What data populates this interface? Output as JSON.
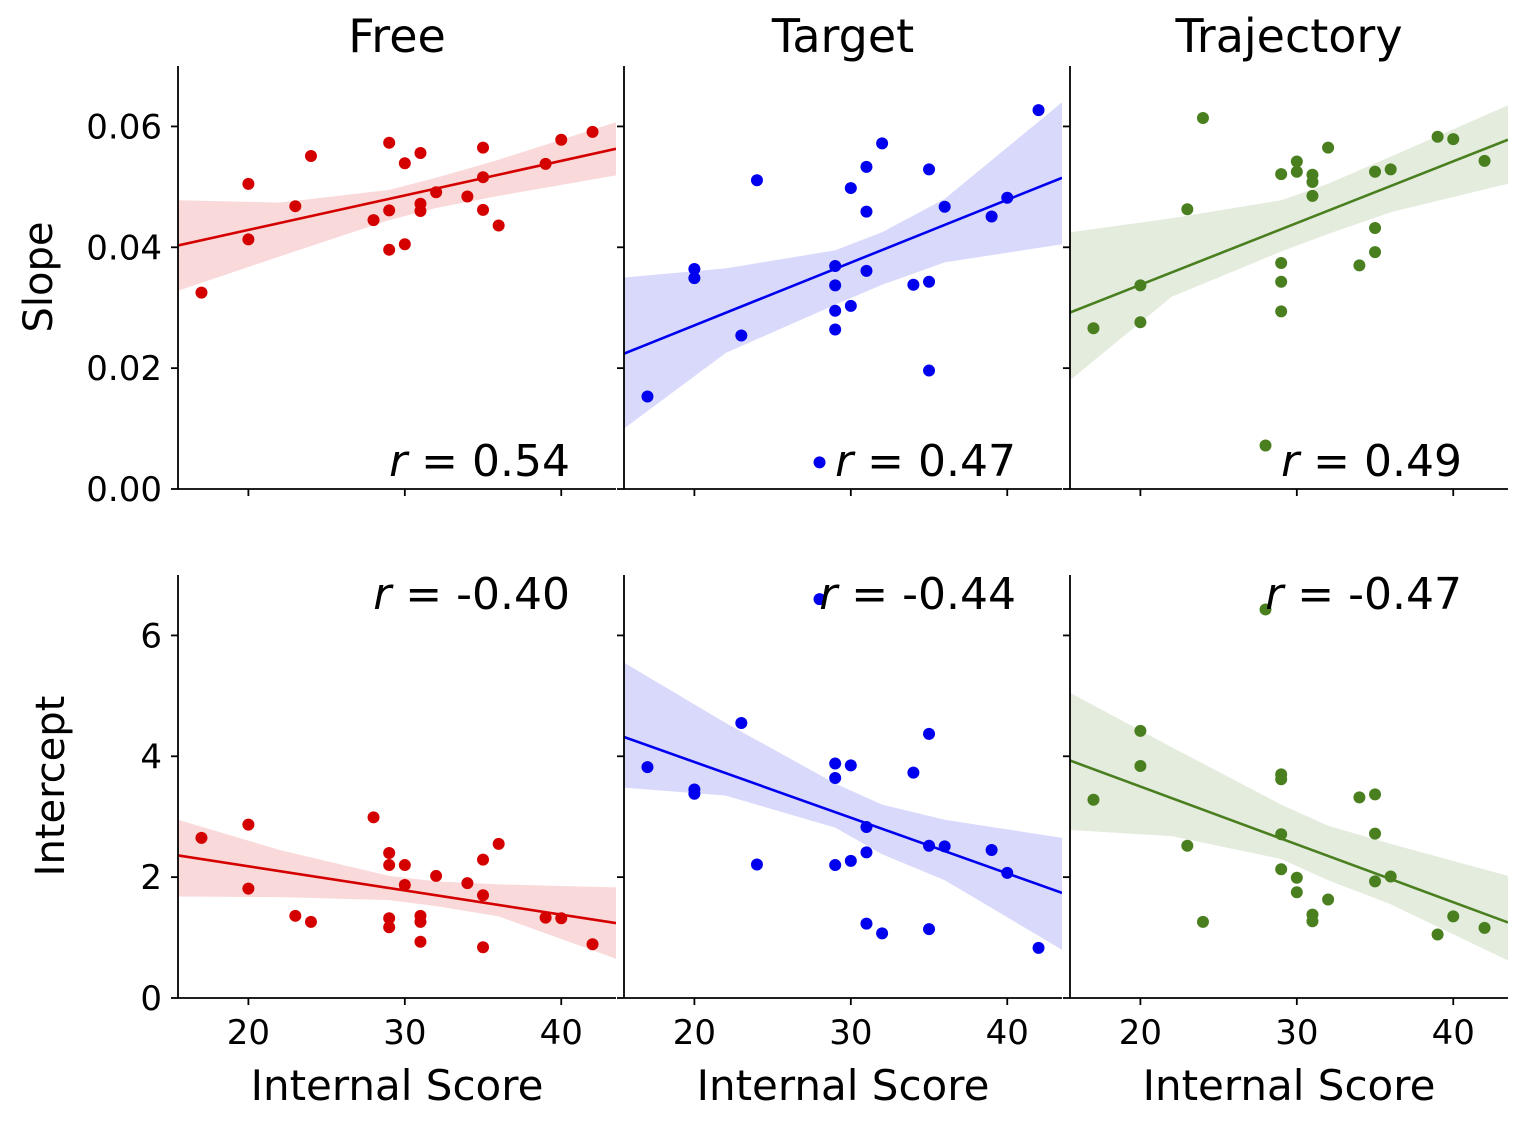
{
  "figure": {
    "column_titles": [
      "Free",
      "Target",
      "Trajectory"
    ],
    "row_labels": [
      "Slope",
      "Intercept"
    ],
    "x_label": "Internal Score"
  },
  "chart_data": [
    {
      "type": "scatter",
      "panel": "Free / Slope",
      "color": "#d40000",
      "xlim": [
        15.5,
        43.5
      ],
      "ylim": [
        0,
        0.07
      ],
      "xticks": [
        20,
        30,
        40
      ],
      "yticks": [
        0.0,
        0.02,
        0.04,
        0.06
      ],
      "ytick_labels": [
        "0.00",
        "0.02",
        "0.04",
        "0.06"
      ],
      "annotation": "r = 0.54",
      "points": [
        [
          17,
          0.0325
        ],
        [
          20,
          0.0505
        ],
        [
          20,
          0.0413
        ],
        [
          23,
          0.0468
        ],
        [
          24,
          0.0551
        ],
        [
          28,
          0.0445
        ],
        [
          29,
          0.0573
        ],
        [
          29,
          0.0461
        ],
        [
          29,
          0.0396
        ],
        [
          30,
          0.0539
        ],
        [
          30,
          0.0405
        ],
        [
          31,
          0.0556
        ],
        [
          31,
          0.0472
        ],
        [
          31,
          0.046
        ],
        [
          32,
          0.0491
        ],
        [
          34,
          0.0484
        ],
        [
          35,
          0.0565
        ],
        [
          35,
          0.0516
        ],
        [
          35,
          0.0462
        ],
        [
          36,
          0.0436
        ],
        [
          39,
          0.0538
        ],
        [
          40,
          0.0578
        ],
        [
          42,
          0.0591
        ]
      ],
      "fit": {
        "x": [
          15.5,
          43.5
        ],
        "y": [
          0.0403,
          0.0563
        ]
      },
      "band": {
        "x": [
          15.5,
          22,
          29,
          32,
          36,
          43.5
        ],
        "upper": [
          0.0478,
          0.0474,
          0.0495,
          0.0515,
          0.0545,
          0.0607
        ],
        "lower": [
          0.0328,
          0.0385,
          0.0445,
          0.0465,
          0.0485,
          0.0519
        ]
      }
    },
    {
      "type": "scatter",
      "panel": "Target / Slope",
      "color": "#0000ee",
      "xlim": [
        15.5,
        43.5
      ],
      "ylim": [
        0,
        0.07
      ],
      "xticks": [
        20,
        30,
        40
      ],
      "yticks": [
        0.0,
        0.02,
        0.04,
        0.06
      ],
      "annotation": "r = 0.47",
      "points": [
        [
          17,
          0.0153
        ],
        [
          20,
          0.0364
        ],
        [
          20,
          0.0349
        ],
        [
          23,
          0.0254
        ],
        [
          24,
          0.0511
        ],
        [
          28,
          0.0044
        ],
        [
          29,
          0.0369
        ],
        [
          29,
          0.0337
        ],
        [
          29,
          0.0295
        ],
        [
          29,
          0.0264
        ],
        [
          30,
          0.0498
        ],
        [
          30,
          0.0303
        ],
        [
          31,
          0.0533
        ],
        [
          31,
          0.0459
        ],
        [
          31,
          0.0361
        ],
        [
          32,
          0.0572
        ],
        [
          34,
          0.0338
        ],
        [
          35,
          0.0529
        ],
        [
          35,
          0.0343
        ],
        [
          35,
          0.0196
        ],
        [
          36,
          0.0467
        ],
        [
          39,
          0.0451
        ],
        [
          40,
          0.0482
        ],
        [
          42,
          0.0627
        ]
      ],
      "fit": {
        "x": [
          15.5,
          43.5
        ],
        "y": [
          0.0224,
          0.0515
        ]
      },
      "band": {
        "x": [
          15.5,
          22,
          29,
          32,
          36,
          43.5
        ],
        "upper": [
          0.035,
          0.0365,
          0.0395,
          0.0425,
          0.048,
          0.064
        ],
        "lower": [
          0.01,
          0.0225,
          0.0305,
          0.0338,
          0.0375,
          0.0405
        ]
      }
    },
    {
      "type": "scatter",
      "panel": "Trajectory / Slope",
      "color": "#4a7f1f",
      "xlim": [
        15.5,
        43.5
      ],
      "ylim": [
        0,
        0.07
      ],
      "xticks": [
        20,
        30,
        40
      ],
      "yticks": [
        0.0,
        0.02,
        0.04,
        0.06
      ],
      "annotation": "r = 0.49",
      "points": [
        [
          17,
          0.0266
        ],
        [
          20,
          0.0337
        ],
        [
          20,
          0.0276
        ],
        [
          23,
          0.0463
        ],
        [
          24,
          0.0614
        ],
        [
          28,
          0.0072
        ],
        [
          29,
          0.0521
        ],
        [
          29,
          0.0374
        ],
        [
          29,
          0.0343
        ],
        [
          29,
          0.0294
        ],
        [
          30,
          0.0542
        ],
        [
          30,
          0.0525
        ],
        [
          31,
          0.052
        ],
        [
          31,
          0.0508
        ],
        [
          31,
          0.0485
        ],
        [
          32,
          0.0565
        ],
        [
          34,
          0.037
        ],
        [
          35,
          0.0525
        ],
        [
          35,
          0.0432
        ],
        [
          35,
          0.0392
        ],
        [
          36,
          0.0529
        ],
        [
          39,
          0.0583
        ],
        [
          40,
          0.0579
        ],
        [
          42,
          0.0543
        ]
      ],
      "fit": {
        "x": [
          15.5,
          43.5
        ],
        "y": [
          0.0292,
          0.0578
        ]
      },
      "band": {
        "x": [
          15.5,
          22,
          29,
          32,
          36,
          43.5
        ],
        "upper": [
          0.0425,
          0.0448,
          0.0478,
          0.0505,
          0.055,
          0.0635
        ],
        "lower": [
          0.018,
          0.0318,
          0.0393,
          0.0422,
          0.0458,
          0.0505
        ]
      }
    },
    {
      "type": "scatter",
      "panel": "Free / Intercept",
      "color": "#d40000",
      "xlim": [
        15.5,
        43.5
      ],
      "ylim": [
        0,
        7
      ],
      "xticks": [
        20,
        30,
        40
      ],
      "yticks": [
        0,
        2,
        4,
        6
      ],
      "xtick_labels": [
        "20",
        "30",
        "40"
      ],
      "ytick_labels": [
        "0",
        "2",
        "4",
        "6"
      ],
      "annotation": "r = -0.40",
      "points": [
        [
          17,
          2.65
        ],
        [
          20,
          2.87
        ],
        [
          20,
          1.81
        ],
        [
          23,
          1.36
        ],
        [
          24,
          1.26
        ],
        [
          28,
          2.99
        ],
        [
          29,
          2.4
        ],
        [
          29,
          2.2
        ],
        [
          29,
          1.32
        ],
        [
          29,
          1.17
        ],
        [
          30,
          2.2
        ],
        [
          30,
          1.87
        ],
        [
          31,
          1.36
        ],
        [
          31,
          1.26
        ],
        [
          31,
          0.93
        ],
        [
          32,
          2.02
        ],
        [
          34,
          1.9
        ],
        [
          35,
          2.29
        ],
        [
          35,
          1.7
        ],
        [
          35,
          0.84
        ],
        [
          36,
          2.55
        ],
        [
          39,
          1.33
        ],
        [
          40,
          1.32
        ],
        [
          42,
          0.89
        ]
      ],
      "fit": {
        "x": [
          15.5,
          43.5
        ],
        "y": [
          2.36,
          1.24
        ]
      },
      "band": {
        "x": [
          15.5,
          22,
          29,
          32,
          36,
          43.5
        ],
        "upper": [
          2.95,
          2.45,
          2.02,
          1.93,
          1.88,
          1.83
        ],
        "lower": [
          1.68,
          1.67,
          1.62,
          1.52,
          1.35,
          0.65
        ]
      }
    },
    {
      "type": "scatter",
      "panel": "Target / Intercept",
      "color": "#0000ee",
      "xlim": [
        15.5,
        43.5
      ],
      "ylim": [
        0,
        7
      ],
      "xticks": [
        20,
        30,
        40
      ],
      "yticks": [
        0,
        2,
        4,
        6
      ],
      "xtick_labels": [
        "20",
        "30",
        "40"
      ],
      "annotation": "r = -0.44",
      "points": [
        [
          17,
          3.82
        ],
        [
          20,
          3.45
        ],
        [
          20,
          3.38
        ],
        [
          23,
          4.55
        ],
        [
          24,
          2.21
        ],
        [
          28,
          6.6
        ],
        [
          29,
          3.88
        ],
        [
          29,
          3.64
        ],
        [
          29,
          2.2
        ],
        [
          30,
          3.85
        ],
        [
          30,
          2.27
        ],
        [
          31,
          2.83
        ],
        [
          31,
          2.41
        ],
        [
          31,
          1.23
        ],
        [
          32,
          1.07
        ],
        [
          34,
          3.73
        ],
        [
          35,
          4.37
        ],
        [
          35,
          2.52
        ],
        [
          35,
          1.14
        ],
        [
          36,
          2.51
        ],
        [
          39,
          2.45
        ],
        [
          40,
          2.07
        ],
        [
          42,
          0.83
        ]
      ],
      "fit": {
        "x": [
          15.5,
          43.5
        ],
        "y": [
          4.32,
          1.74
        ]
      },
      "band": {
        "x": [
          15.5,
          22,
          29,
          32,
          36,
          43.5
        ],
        "upper": [
          5.55,
          4.55,
          3.55,
          3.2,
          2.95,
          2.65
        ],
        "lower": [
          3.48,
          3.35,
          2.82,
          2.38,
          1.95,
          0.8
        ]
      }
    },
    {
      "type": "scatter",
      "panel": "Trajectory / Intercept",
      "color": "#4a7f1f",
      "xlim": [
        15.5,
        43.5
      ],
      "ylim": [
        0,
        7
      ],
      "xticks": [
        20,
        30,
        40
      ],
      "yticks": [
        0,
        2,
        4,
        6
      ],
      "xtick_labels": [
        "20",
        "30",
        "40"
      ],
      "annotation": "r = -0.47",
      "points": [
        [
          17,
          3.28
        ],
        [
          20,
          4.42
        ],
        [
          20,
          3.84
        ],
        [
          23,
          2.52
        ],
        [
          24,
          1.26
        ],
        [
          28,
          6.43
        ],
        [
          29,
          3.7
        ],
        [
          29,
          3.62
        ],
        [
          29,
          2.71
        ],
        [
          29,
          2.13
        ],
        [
          30,
          1.99
        ],
        [
          30,
          1.75
        ],
        [
          31,
          1.38
        ],
        [
          31,
          1.27
        ],
        [
          32,
          1.63
        ],
        [
          34,
          3.32
        ],
        [
          35,
          3.37
        ],
        [
          35,
          2.72
        ],
        [
          35,
          1.93
        ],
        [
          36,
          2.01
        ],
        [
          39,
          1.05
        ],
        [
          40,
          1.35
        ],
        [
          42,
          1.16
        ]
      ],
      "fit": {
        "x": [
          15.5,
          43.5
        ],
        "y": [
          3.93,
          1.25
        ]
      },
      "band": {
        "x": [
          15.5,
          22,
          29,
          32,
          36,
          43.5
        ],
        "upper": [
          5.05,
          4.15,
          3.2,
          2.85,
          2.55,
          2.02
        ],
        "lower": [
          2.78,
          2.68,
          2.3,
          1.95,
          1.55,
          0.62
        ]
      }
    }
  ]
}
